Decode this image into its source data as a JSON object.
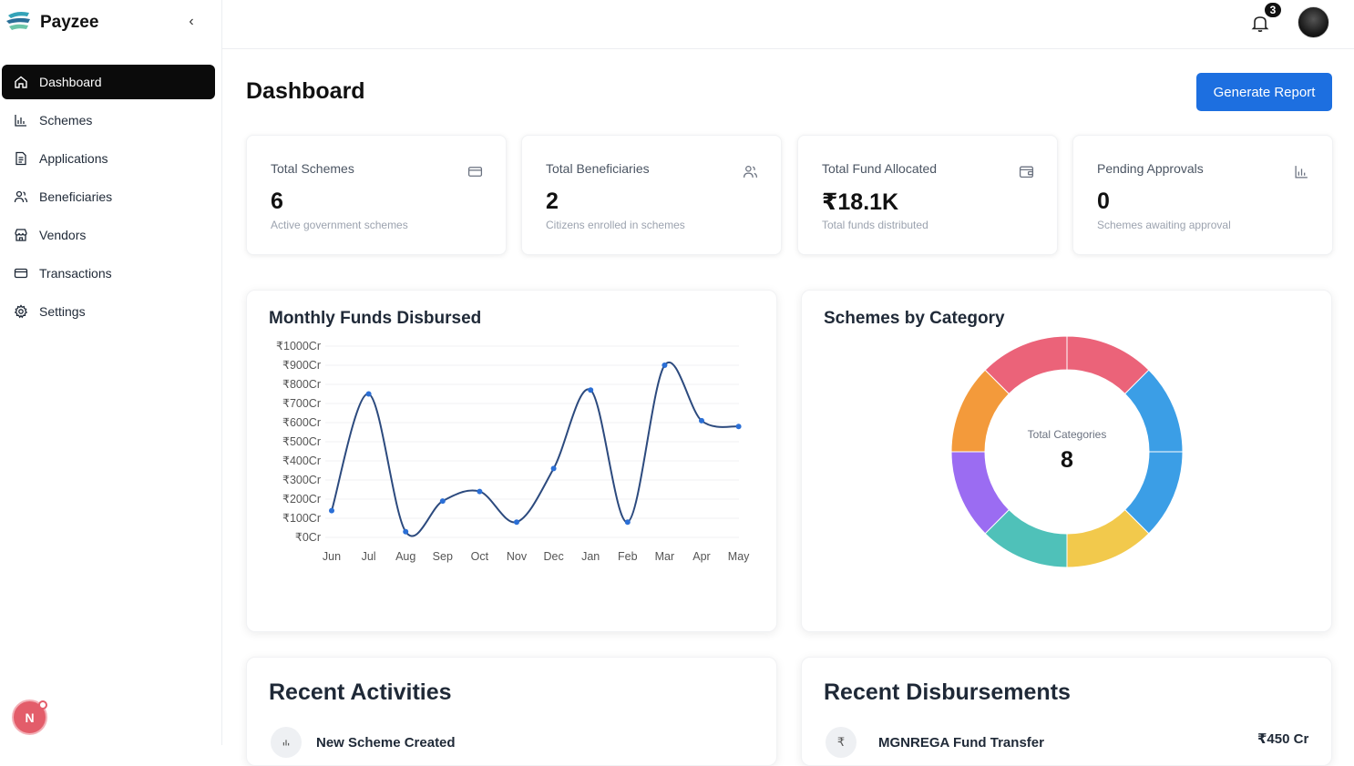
{
  "brand": {
    "name": "Payzee",
    "accent": "#1d6fe0"
  },
  "sidebar": {
    "items": [
      {
        "label": "Dashboard",
        "icon": "home-icon",
        "active": true
      },
      {
        "label": "Schemes",
        "icon": "bar-chart-icon"
      },
      {
        "label": "Applications",
        "icon": "document-icon"
      },
      {
        "label": "Beneficiaries",
        "icon": "users-icon"
      },
      {
        "label": "Vendors",
        "icon": "store-icon"
      },
      {
        "label": "Transactions",
        "icon": "credit-card-icon"
      },
      {
        "label": "Settings",
        "icon": "gear-icon"
      }
    ],
    "user_initial": "N"
  },
  "topbar": {
    "notification_count": "3"
  },
  "page": {
    "title": "Dashboard",
    "generate_label": "Generate Report"
  },
  "stats": [
    {
      "label": "Total Schemes",
      "value": "6",
      "sub": "Active government schemes",
      "icon": "wallet-icon"
    },
    {
      "label": "Total Beneficiaries",
      "value": "2",
      "sub": "Citizens enrolled in schemes",
      "icon": "users-icon"
    },
    {
      "label": "Total Fund Allocated",
      "value": "₹18.1K",
      "sub": "Total funds distributed",
      "icon": "wallet-icon"
    },
    {
      "label": "Pending Approvals",
      "value": "0",
      "sub": "Schemes awaiting approval",
      "icon": "bar-chart-icon"
    }
  ],
  "line_card": {
    "title": "Monthly Funds Disbursed"
  },
  "donut_card": {
    "title": "Schemes by Category",
    "center_label": "Total Categories",
    "center_value": "8"
  },
  "activities": {
    "title": "Recent Activities",
    "first_item": "New Scheme Created"
  },
  "disbursements": {
    "title": "Recent Disbursements",
    "first_item": "MGNREGA Fund Transfer",
    "first_amount": "₹450 Cr"
  },
  "chart_data": [
    {
      "type": "line",
      "title": "Monthly Funds Disbursed",
      "categories": [
        "Jun",
        "Jul",
        "Aug",
        "Sep",
        "Oct",
        "Nov",
        "Dec",
        "Jan",
        "Feb",
        "Mar",
        "Apr",
        "May"
      ],
      "values": [
        140,
        750,
        30,
        190,
        240,
        80,
        360,
        770,
        80,
        900,
        610,
        580
      ],
      "ylim": [
        0,
        1000
      ],
      "yticks": [
        "₹0Cr",
        "₹100Cr",
        "₹200Cr",
        "₹300Cr",
        "₹400Cr",
        "₹500Cr",
        "₹600Cr",
        "₹700Cr",
        "₹800Cr",
        "₹900Cr",
        "₹1000Cr"
      ],
      "color": "#2c4a7e"
    },
    {
      "type": "pie",
      "title": "Schemes by Category",
      "values": [
        1,
        1,
        1,
        1,
        1,
        1,
        1,
        1
      ],
      "colors": [
        "#eb6379",
        "#3b9ee6",
        "#3b9ee6",
        "#f2c94c",
        "#4fc1b9",
        "#9b6cf2",
        "#f39a3b",
        "#eb6379"
      ]
    }
  ]
}
